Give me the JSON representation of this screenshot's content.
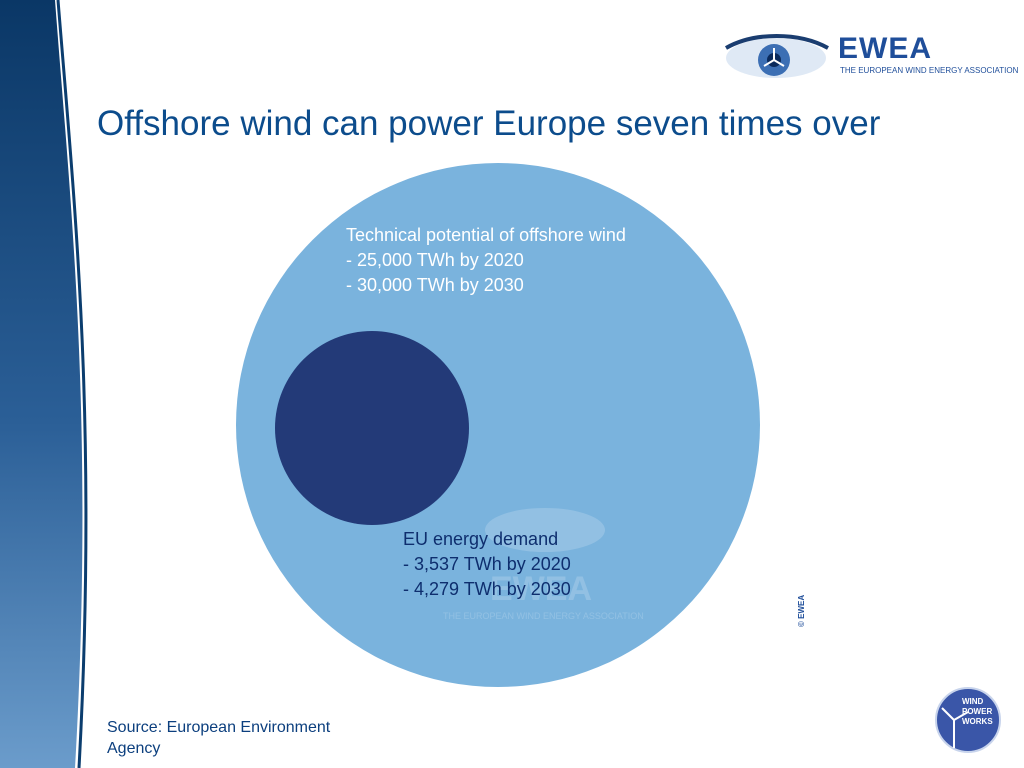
{
  "header": {
    "org_acronym": "EWEA",
    "org_name": "THE EUROPEAN WIND ENERGY ASSOCIATION"
  },
  "slide": {
    "title": "Offshore wind can power Europe seven times over"
  },
  "diagram": {
    "big_circle": {
      "heading": "Technical potential of offshore wind",
      "lines": [
        "- 25,000 TWh by 2020",
        "- 30,000 TWh by 2030"
      ],
      "color": "#7ab3dd"
    },
    "small_circle": {
      "heading": "EU energy demand",
      "lines": [
        "- 3,537 TWh by 2020",
        "- 4,279 TWh by 2030"
      ],
      "color": "#233a78"
    },
    "copyright": "© EWEA"
  },
  "footer": {
    "source": "Source: European Environment Agency",
    "badge_lines": [
      "WIND",
      "POWER",
      "WORKS"
    ]
  },
  "colors": {
    "band_dark": "#0b3d6e",
    "band_light": "#5b8ec0",
    "title": "#0c4c8c"
  }
}
